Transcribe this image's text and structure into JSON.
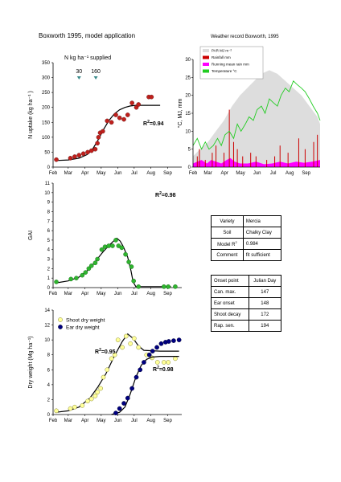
{
  "page": {
    "title": "Boxworth 1995, model application",
    "weather_title": "Weather record Boxworth, 1995"
  },
  "months": [
    "Feb",
    "Mar",
    "Apr",
    "May",
    "Jun",
    "Jul",
    "Aug",
    "Sep"
  ],
  "chart_data": [
    {
      "id": "n-uptake",
      "type": "scatter",
      "ylabel": "N uptake (kg ha⁻¹ )",
      "ylim": [
        0,
        350
      ],
      "yticks": [
        0,
        50,
        100,
        150,
        200,
        250,
        300,
        350
      ],
      "xlim": [
        32,
        270
      ],
      "annotation_title": "N kg ha⁻¹ supplied",
      "fertiliser": [
        {
          "label": "30",
          "day": 80
        },
        {
          "label": "160",
          "day": 111
        }
      ],
      "r2": {
        "prefix": "R",
        "sup": "2",
        "value": "=0.94"
      },
      "points": [
        [
          38,
          25
        ],
        [
          64,
          30
        ],
        [
          72,
          35
        ],
        [
          80,
          40
        ],
        [
          88,
          45
        ],
        [
          96,
          50
        ],
        [
          103,
          55
        ],
        [
          110,
          60
        ],
        [
          114,
          80
        ],
        [
          116,
          100
        ],
        [
          119,
          115
        ],
        [
          124,
          120
        ],
        [
          132,
          155
        ],
        [
          140,
          150
        ],
        [
          148,
          175
        ],
        [
          155,
          165
        ],
        [
          163,
          160
        ],
        [
          170,
          175
        ],
        [
          178,
          215
        ],
        [
          186,
          200
        ],
        [
          190,
          210
        ],
        [
          209,
          235
        ],
        [
          214,
          235
        ]
      ],
      "curve": [
        [
          38,
          22
        ],
        [
          60,
          24
        ],
        [
          80,
          30
        ],
        [
          95,
          42
        ],
        [
          105,
          60
        ],
        [
          115,
          90
        ],
        [
          125,
          125
        ],
        [
          135,
          155
        ],
        [
          145,
          178
        ],
        [
          155,
          192
        ],
        [
          165,
          200
        ],
        [
          175,
          205
        ],
        [
          185,
          207
        ],
        [
          230,
          207
        ]
      ]
    },
    {
      "id": "weather",
      "type": "area",
      "ylabel": "°C, MJ, mm",
      "ylim": [
        0,
        30
      ],
      "yticks": [
        0,
        5,
        10,
        15,
        20,
        25,
        30
      ],
      "xlim": [
        32,
        270
      ],
      "legend": [
        {
          "label": "PAR MJ m⁻²",
          "color": "#dddddd"
        },
        {
          "label": "Rainfall mm",
          "color": "#cc0000"
        },
        {
          "label": "Running mean rain mm",
          "color": "#ff00ff"
        },
        {
          "label": "Temperature °C",
          "color": "#22cc22"
        }
      ],
      "par": [
        [
          32,
          3
        ],
        [
          45,
          5
        ],
        [
          60,
          7
        ],
        [
          75,
          10
        ],
        [
          90,
          13
        ],
        [
          105,
          17
        ],
        [
          120,
          20
        ],
        [
          140,
          23
        ],
        [
          160,
          26
        ],
        [
          175,
          27
        ],
        [
          190,
          26
        ],
        [
          205,
          24
        ],
        [
          220,
          22
        ],
        [
          235,
          20
        ],
        [
          250,
          17
        ],
        [
          265,
          14
        ],
        [
          270,
          12
        ]
      ],
      "temperature": [
        [
          32,
          6
        ],
        [
          40,
          8
        ],
        [
          48,
          5
        ],
        [
          55,
          7
        ],
        [
          62,
          5
        ],
        [
          70,
          6
        ],
        [
          78,
          8
        ],
        [
          85,
          6
        ],
        [
          92,
          9
        ],
        [
          100,
          10
        ],
        [
          108,
          8
        ],
        [
          115,
          12
        ],
        [
          122,
          10
        ],
        [
          130,
          12
        ],
        [
          137,
          14
        ],
        [
          145,
          13
        ],
        [
          152,
          16
        ],
        [
          160,
          17
        ],
        [
          167,
          15
        ],
        [
          175,
          19
        ],
        [
          182,
          18
        ],
        [
          190,
          17
        ],
        [
          197,
          20
        ],
        [
          205,
          22
        ],
        [
          212,
          21
        ],
        [
          220,
          24
        ],
        [
          227,
          23
        ],
        [
          235,
          22
        ],
        [
          242,
          21
        ],
        [
          250,
          19
        ],
        [
          257,
          17
        ],
        [
          265,
          15
        ],
        [
          270,
          13
        ]
      ],
      "rain": [
        [
          40,
          3
        ],
        [
          44,
          5
        ],
        [
          55,
          2
        ],
        [
          68,
          4
        ],
        [
          75,
          6
        ],
        [
          90,
          4
        ],
        [
          100,
          16
        ],
        [
          108,
          7
        ],
        [
          115,
          5
        ],
        [
          125,
          3
        ],
        [
          140,
          4
        ],
        [
          150,
          3
        ],
        [
          170,
          2
        ],
        [
          185,
          3
        ],
        [
          195,
          6
        ],
        [
          210,
          4
        ],
        [
          230,
          8
        ],
        [
          242,
          5
        ],
        [
          258,
          7
        ],
        [
          265,
          9
        ]
      ],
      "rain_mean": [
        [
          32,
          1
        ],
        [
          40,
          1.5
        ],
        [
          48,
          2
        ],
        [
          58,
          1
        ],
        [
          66,
          2
        ],
        [
          75,
          1.5
        ],
        [
          85,
          1
        ],
        [
          95,
          2
        ],
        [
          102,
          2.5
        ],
        [
          110,
          1.5
        ],
        [
          120,
          1
        ],
        [
          135,
          1
        ],
        [
          150,
          1.5
        ],
        [
          165,
          0.8
        ],
        [
          180,
          1
        ],
        [
          195,
          1.5
        ],
        [
          210,
          1
        ],
        [
          225,
          1.5
        ],
        [
          240,
          1.2
        ],
        [
          255,
          1.5
        ],
        [
          270,
          2
        ]
      ]
    },
    {
      "id": "gai",
      "type": "scatter",
      "ylabel": "GAI",
      "ylim": [
        0,
        11
      ],
      "yticks": [
        0,
        1,
        2,
        3,
        4,
        5,
        6,
        7,
        8,
        9,
        10,
        11
      ],
      "xlim": [
        32,
        270
      ],
      "r2": {
        "prefix": "R",
        "sup": "2",
        "value": "=0.98"
      },
      "points": [
        [
          38,
          0.6
        ],
        [
          65,
          0.9
        ],
        [
          75,
          1.0
        ],
        [
          86,
          1.3
        ],
        [
          92,
          1.6
        ],
        [
          98,
          2.0
        ],
        [
          103,
          2.3
        ],
        [
          110,
          2.6
        ],
        [
          114,
          3.0
        ],
        [
          122,
          4.0
        ],
        [
          128,
          4.3
        ],
        [
          135,
          4.4
        ],
        [
          142,
          4.4
        ],
        [
          148,
          5.0
        ],
        [
          153,
          4.4
        ],
        [
          159,
          4.2
        ],
        [
          166,
          3.5
        ],
        [
          172,
          2.7
        ],
        [
          177,
          2.2
        ],
        [
          181,
          0.7
        ],
        [
          190,
          0.1
        ],
        [
          237,
          0.1
        ],
        [
          245,
          0.1
        ],
        [
          258,
          0.1
        ]
      ],
      "curve": [
        [
          38,
          0.5
        ],
        [
          60,
          0.7
        ],
        [
          80,
          1.1
        ],
        [
          100,
          2.0
        ],
        [
          115,
          3.1
        ],
        [
          125,
          3.8
        ],
        [
          135,
          4.4
        ],
        [
          142,
          4.8
        ],
        [
          150,
          5.2
        ],
        [
          156,
          4.9
        ],
        [
          162,
          4.3
        ],
        [
          170,
          3.2
        ],
        [
          176,
          1.8
        ],
        [
          180,
          0.6
        ],
        [
          185,
          0.1
        ],
        [
          250,
          0.1
        ]
      ]
    },
    {
      "id": "dry-weight",
      "type": "scatter",
      "ylabel": "Dry weight (Mg ha⁻¹)",
      "ylim": [
        0,
        14
      ],
      "yticks": [
        0,
        2,
        4,
        6,
        8,
        10,
        12,
        14
      ],
      "xlim": [
        32,
        270
      ],
      "series": [
        {
          "name": "Shoot dry weight",
          "fill": "#ffff99",
          "r2": {
            "prefix": "R",
            "sup": "2",
            "value": "=0.95"
          },
          "points": [
            [
              38,
              0.5
            ],
            [
              64,
              0.8
            ],
            [
              72,
              1.0
            ],
            [
              86,
              1.2
            ],
            [
              96,
              1.8
            ],
            [
              103,
              2.1
            ],
            [
              110,
              2.5
            ],
            [
              114,
              3.0
            ],
            [
              120,
              3.5
            ],
            [
              125,
              5.0
            ],
            [
              132,
              6.0
            ],
            [
              140,
              7.5
            ],
            [
              146,
              8.0
            ],
            [
              152,
              10.0
            ],
            [
              160,
              9.0
            ],
            [
              167,
              10.5
            ],
            [
              175,
              9.5
            ],
            [
              182,
              10.2
            ],
            [
              190,
              9.0
            ],
            [
              205,
              8.0
            ],
            [
              215,
              7.6
            ],
            [
              225,
              7.0
            ],
            [
              237,
              7.0
            ],
            [
              245,
              7.0
            ],
            [
              258,
              7.5
            ]
          ],
          "curve": [
            [
              38,
              0.3
            ],
            [
              60,
              0.5
            ],
            [
              80,
              1.0
            ],
            [
              100,
              2.2
            ],
            [
              115,
              3.7
            ],
            [
              130,
              5.5
            ],
            [
              145,
              7.8
            ],
            [
              160,
              9.8
            ],
            [
              170,
              10.8
            ],
            [
              180,
              10.2
            ],
            [
              190,
              9.2
            ],
            [
              200,
              8.6
            ],
            [
              230,
              8.5
            ],
            [
              265,
              8.5
            ]
          ]
        },
        {
          "name": "Ear dry weight",
          "fill": "#000080",
          "r2": {
            "prefix": "R",
            "sup": "2",
            "value": "=0.98"
          },
          "points": [
            [
              148,
              0.2
            ],
            [
              155,
              0.8
            ],
            [
              163,
              1.5
            ],
            [
              170,
              2.2
            ],
            [
              178,
              3.5
            ],
            [
              186,
              5.0
            ],
            [
              193,
              6.0
            ],
            [
              200,
              7.0
            ],
            [
              210,
              8.0
            ],
            [
              216,
              8.5
            ],
            [
              224,
              9.0
            ],
            [
              232,
              9.5
            ],
            [
              240,
              9.7
            ],
            [
              246,
              9.8
            ],
            [
              255,
              9.9
            ],
            [
              265,
              10.0
            ]
          ],
          "curve": [
            [
              140,
              0
            ],
            [
              155,
              0.3
            ],
            [
              165,
              1.0
            ],
            [
              175,
              2.8
            ],
            [
              185,
              5.0
            ],
            [
              195,
              6.6
            ],
            [
              205,
              7.4
            ],
            [
              215,
              7.7
            ],
            [
              230,
              7.8
            ],
            [
              265,
              7.8
            ]
          ]
        }
      ]
    }
  ],
  "variety_table": {
    "rows": [
      {
        "label": "Variety",
        "value": "Mercia"
      },
      {
        "label": "Soil",
        "value": "Chalky Clay"
      },
      {
        "label": "Model R",
        "label_sup": "2",
        "value": "0.984"
      },
      {
        "label": "Comment",
        "value": "fit sufficient"
      }
    ]
  },
  "onset_table": {
    "header": {
      "label": "Onset point",
      "value": "Julian Day"
    },
    "rows": [
      {
        "label": "Can. max.",
        "value": "147"
      },
      {
        "label": "Ear onset",
        "value": "148"
      },
      {
        "label": "Shoot decay",
        "value": "172"
      },
      {
        "label": "Rap. sen.",
        "value": "194"
      }
    ]
  }
}
